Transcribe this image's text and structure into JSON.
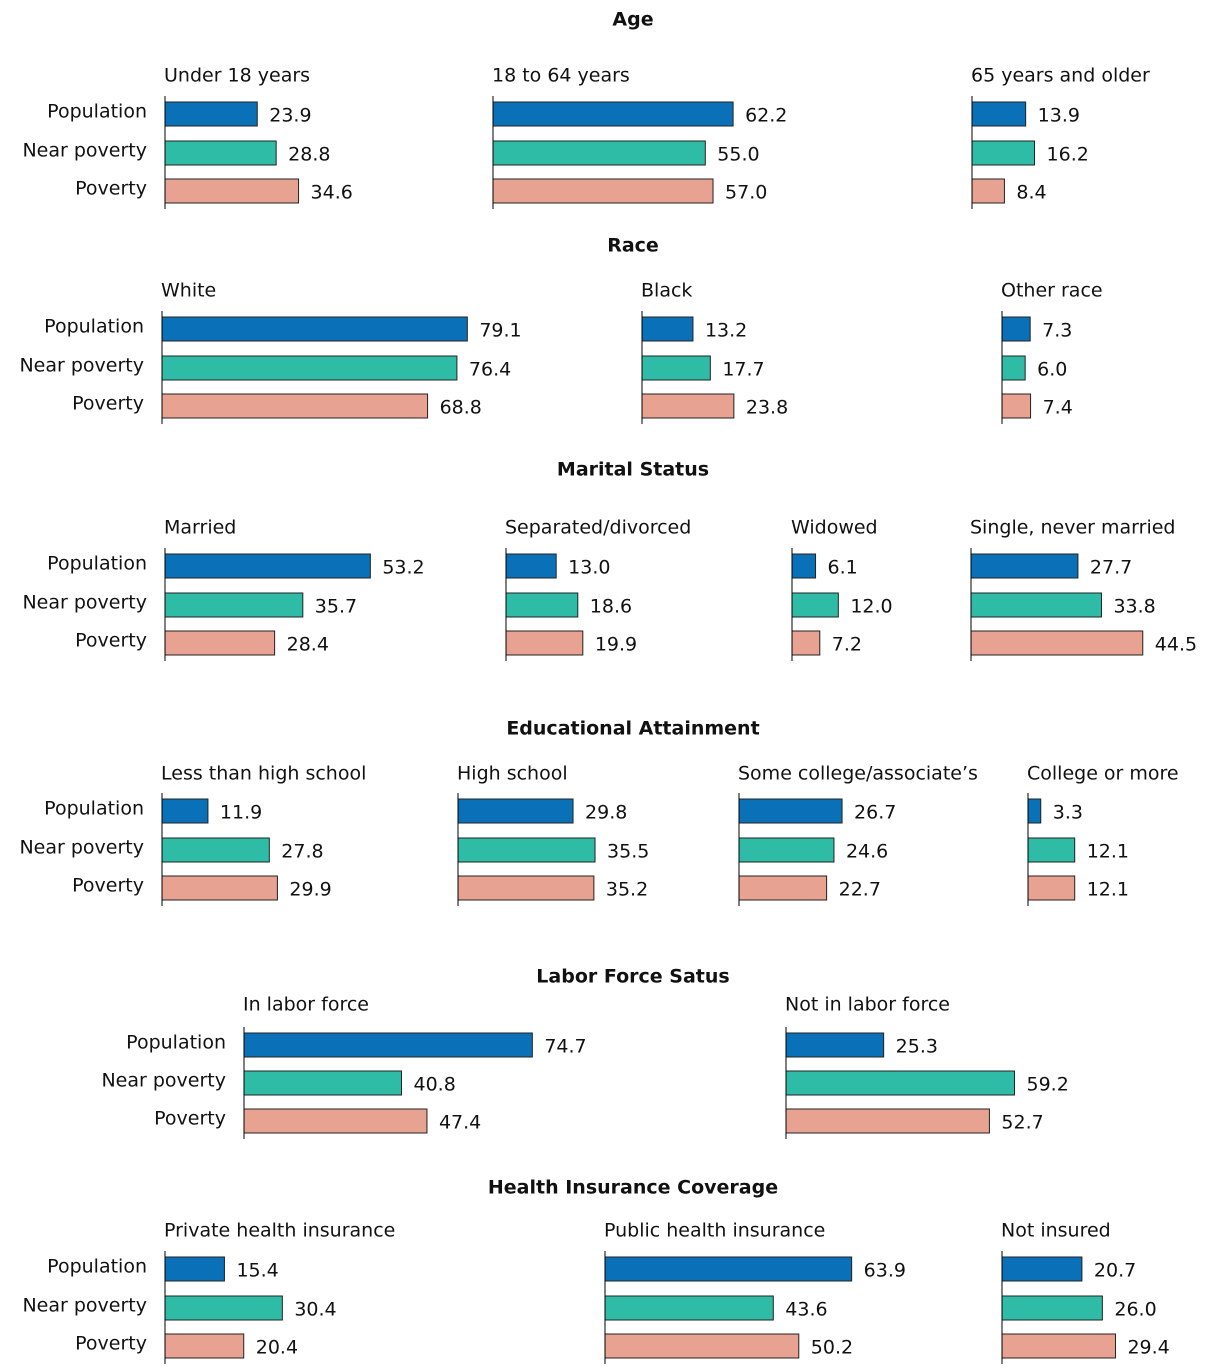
{
  "chart_data": [
    {
      "type": "bar",
      "title": "Age",
      "categories": [
        "Population",
        "Near poverty",
        "Poverty"
      ],
      "colors": [
        "#0a71b9",
        "#2fbca6",
        "#e8a291"
      ],
      "panels": [
        {
          "title": "Under 18 years",
          "values": [
            23.9,
            28.8,
            34.6
          ],
          "value_labels": [
            "23.9",
            "28.8",
            "34.6"
          ]
        },
        {
          "title": "18 to 64 years",
          "values": [
            62.2,
            55.0,
            57.0
          ],
          "value_labels": [
            "62.2",
            "55.0",
            "57.0"
          ]
        },
        {
          "title": "65 years and older",
          "values": [
            13.9,
            16.2,
            8.4
          ],
          "value_labels": [
            "13.9",
            "16.2",
            "8.4"
          ]
        }
      ]
    },
    {
      "type": "bar",
      "title": "Race",
      "categories": [
        "Population",
        "Near poverty",
        "Poverty"
      ],
      "colors": [
        "#0a71b9",
        "#2fbca6",
        "#e8a291"
      ],
      "panels": [
        {
          "title": "White",
          "values": [
            79.1,
            76.4,
            68.8
          ],
          "value_labels": [
            "79.1",
            "76.4",
            "68.8"
          ]
        },
        {
          "title": "Black",
          "values": [
            13.2,
            17.7,
            23.8
          ],
          "value_labels": [
            "13.2",
            "17.7",
            "23.8"
          ]
        },
        {
          "title": "Other race",
          "values": [
            7.3,
            6.0,
            7.4
          ],
          "value_labels": [
            "7.3",
            "6.0",
            "7.4"
          ]
        }
      ]
    },
    {
      "type": "bar",
      "title": "Marital Status",
      "categories": [
        "Population",
        "Near poverty",
        "Poverty"
      ],
      "colors": [
        "#0a71b9",
        "#2fbca6",
        "#e8a291"
      ],
      "panels": [
        {
          "title": "Married",
          "values": [
            53.2,
            35.7,
            28.4
          ],
          "value_labels": [
            "53.2",
            "35.7",
            "28.4"
          ]
        },
        {
          "title": "Separated/divorced",
          "values": [
            13.0,
            18.6,
            19.9
          ],
          "value_labels": [
            "13.0",
            "18.6",
            "19.9"
          ]
        },
        {
          "title": "Widowed",
          "values": [
            6.1,
            12.0,
            7.2
          ],
          "value_labels": [
            "6.1",
            "12.0",
            "7.2"
          ]
        },
        {
          "title": "Single, never married",
          "values": [
            27.7,
            33.8,
            44.5
          ],
          "value_labels": [
            "27.7",
            "33.8",
            "44.5"
          ]
        }
      ]
    },
    {
      "type": "bar",
      "title": "Educational Attainment",
      "categories": [
        "Population",
        "Near poverty",
        "Poverty"
      ],
      "colors": [
        "#0a71b9",
        "#2fbca6",
        "#e8a291"
      ],
      "panels": [
        {
          "title": "Less than high school",
          "values": [
            11.9,
            27.8,
            29.9
          ],
          "value_labels": [
            "11.9",
            "27.8",
            "29.9"
          ]
        },
        {
          "title": "High school",
          "values": [
            29.8,
            35.5,
            35.2
          ],
          "value_labels": [
            "29.8",
            "35.5",
            "35.2"
          ]
        },
        {
          "title": "Some college/associate’s",
          "values": [
            26.7,
            24.6,
            22.7
          ],
          "value_labels": [
            "26.7",
            "24.6",
            "22.7"
          ]
        },
        {
          "title": "College or more",
          "values": [
            3.3,
            12.1,
            12.1
          ],
          "value_labels": [
            "3.3",
            "12.1",
            "12.1"
          ]
        }
      ]
    },
    {
      "type": "bar",
      "title": "Labor Force Satus",
      "categories": [
        "Population",
        "Near poverty",
        "Poverty"
      ],
      "colors": [
        "#0a71b9",
        "#2fbca6",
        "#e8a291"
      ],
      "panels": [
        {
          "title": "In labor force",
          "values": [
            74.7,
            40.8,
            47.4
          ],
          "value_labels": [
            "74.7",
            "40.8",
            "47.4"
          ]
        },
        {
          "title": "Not in labor force",
          "values": [
            25.3,
            59.2,
            52.7
          ],
          "value_labels": [
            "25.3",
            "59.2",
            "52.7"
          ]
        }
      ]
    },
    {
      "type": "bar",
      "title": "Health Insurance Coverage",
      "categories": [
        "Population",
        "Near poverty",
        "Poverty"
      ],
      "colors": [
        "#0a71b9",
        "#2fbca6",
        "#e8a291"
      ],
      "panels": [
        {
          "title": "Private health insurance",
          "values": [
            15.4,
            30.4,
            20.4
          ],
          "value_labels": [
            "15.4",
            "30.4",
            "20.4"
          ]
        },
        {
          "title": "Public health insurance",
          "values": [
            63.9,
            43.6,
            50.2
          ],
          "value_labels": [
            "63.9",
            "43.6",
            "50.2"
          ]
        },
        {
          "title": "Not insured",
          "values": [
            20.7,
            26.0,
            29.4
          ],
          "value_labels": [
            "20.7",
            "26.0",
            "29.4"
          ]
        }
      ]
    }
  ]
}
